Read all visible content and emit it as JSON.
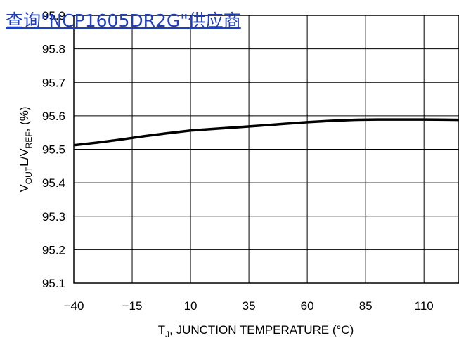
{
  "watermark": {
    "text": "查询\"NCP1605DR2G\"供应商"
  },
  "chart_data": {
    "type": "line",
    "xlabel_main": "T",
    "xlabel_sub": "J",
    "xlabel_rest": ", JUNCTION TEMPERATURE (°C)",
    "ylabel_v": "V",
    "ylabel_out": "OUT",
    "ylabel_mid": "L/V",
    "ylabel_ref": "REF",
    "ylabel_rest": ", (%)",
    "xlim": [
      -40,
      125
    ],
    "ylim": [
      95.1,
      95.9
    ],
    "x_tick_values": [
      -40,
      -15,
      10,
      35,
      60,
      85,
      110
    ],
    "x_tick_labels": [
      "−40",
      "−15",
      "10",
      "35",
      "60",
      "85",
      "110"
    ],
    "y_tick_values": [
      95.9,
      95.8,
      95.7,
      95.6,
      95.5,
      95.4,
      95.3,
      95.2,
      95.1
    ],
    "y_tick_labels": [
      "95.9",
      "95.8",
      "95.7",
      "95.6",
      "95.5",
      "95.4",
      "95.3",
      "95.2",
      "95.1"
    ],
    "grid": true,
    "series": [
      {
        "color": "#000000",
        "x": [
          -40,
          -30,
          -20,
          -10,
          0,
          10,
          20,
          30,
          40,
          50,
          60,
          70,
          80,
          90,
          100,
          110,
          125
        ],
        "y": [
          95.512,
          95.52,
          95.529,
          95.539,
          95.548,
          95.556,
          95.561,
          95.566,
          95.571,
          95.576,
          95.581,
          95.585,
          95.588,
          95.589,
          95.589,
          95.589,
          95.588
        ]
      }
    ]
  }
}
